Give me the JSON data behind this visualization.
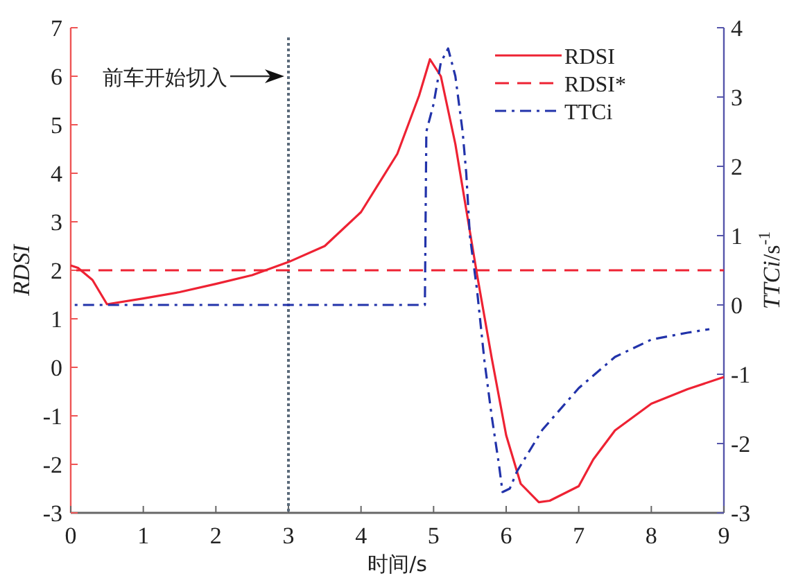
{
  "chart_data": {
    "type": "line",
    "xlabel": "时间/s",
    "ylabel": "*RDSI*",
    "y2label": "*TTCi*/s$^{-1}$",
    "xlim": [
      0,
      9
    ],
    "xticks": [
      0,
      1,
      2,
      3,
      4,
      5,
      6,
      7,
      8,
      9
    ],
    "ylim": [
      -3,
      7
    ],
    "yticks": [
      -3,
      -2,
      -1,
      0,
      1,
      2,
      3,
      4,
      5,
      6,
      7
    ],
    "y2lim": [
      -3,
      4
    ],
    "y2ticks": [
      -3,
      -2,
      -1,
      0,
      1,
      2,
      3,
      4
    ],
    "legend": "top right",
    "grid": false,
    "ref_lines": [
      {
        "axis": "x",
        "value": 3,
        "label": "前车开始切入",
        "color": "#5a6a7a",
        "line_style": "dotted"
      }
    ],
    "series": [
      {
        "name": "RDSI",
        "color": "#ee2233",
        "line_style": "solid",
        "x": [
          0,
          0.1,
          0.3,
          0.5,
          1,
          1.5,
          2,
          2.5,
          3,
          3.5,
          4,
          4.5,
          4.8,
          4.95,
          5.1,
          5.3,
          5.5,
          5.6,
          5.8,
          6.0,
          6.2,
          6.45,
          6.6,
          7,
          7.2,
          7.5,
          8,
          8.5,
          9
        ],
        "values": [
          2.1,
          2.05,
          1.8,
          1.3,
          1.42,
          1.55,
          1.72,
          1.9,
          2.17,
          2.5,
          3.2,
          4.4,
          5.6,
          6.35,
          6.0,
          4.6,
          2.8,
          1.9,
          0.2,
          -1.4,
          -2.4,
          -2.78,
          -2.75,
          -2.45,
          -1.9,
          -1.3,
          -0.75,
          -0.45,
          -0.2
        ]
      },
      {
        "name": "RDSI*",
        "color": "#ee2233",
        "line_style": "dashed",
        "x": [
          0,
          9
        ],
        "values": [
          2,
          2
        ]
      },
      {
        "name": "TTCi",
        "color": "#2233aa",
        "line_style": "dashdot",
        "axis": "y2",
        "x": [
          0,
          4.88,
          4.9,
          5.0,
          5.1,
          5.2,
          5.3,
          5.4,
          5.45,
          5.5,
          5.6,
          5.7,
          5.8,
          5.9,
          5.95,
          6.05,
          6.15,
          6.5,
          7,
          7.5,
          8,
          8.5,
          8.8
        ],
        "values": [
          0,
          0,
          2.5,
          2.9,
          3.5,
          3.7,
          3.3,
          2.5,
          1.9,
          1.0,
          0.2,
          -0.8,
          -1.6,
          -2.3,
          -2.7,
          -2.65,
          -2.4,
          -1.8,
          -1.2,
          -0.75,
          -0.5,
          -0.4,
          -0.35
        ]
      }
    ]
  }
}
